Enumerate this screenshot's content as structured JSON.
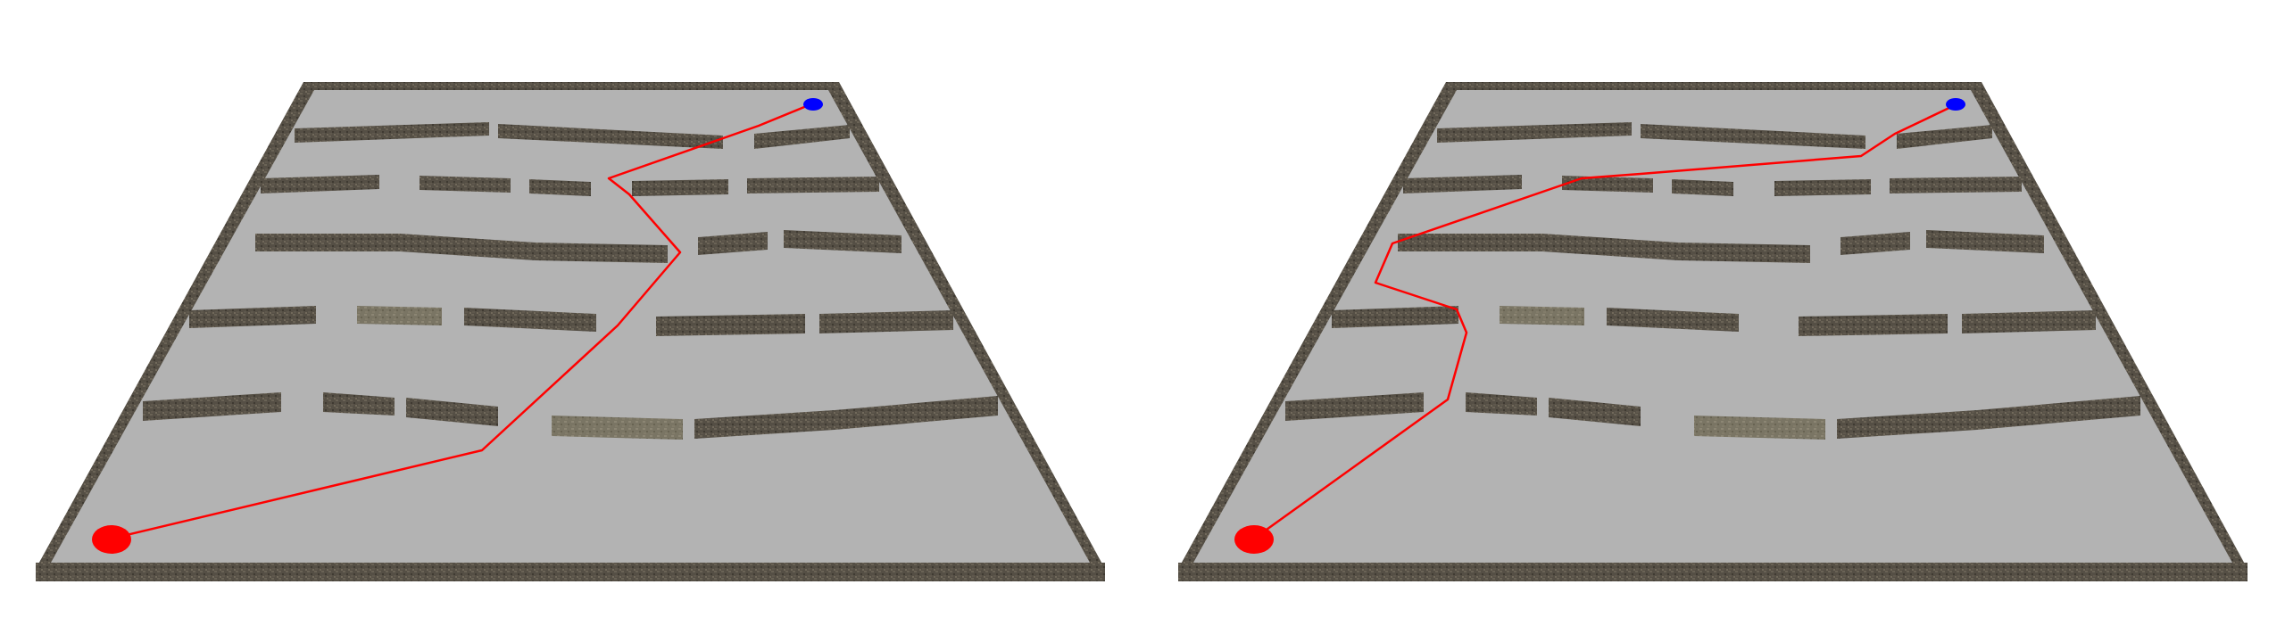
{
  "scene": {
    "title": "",
    "view_count": 2,
    "colors": {
      "background": "#ffffff",
      "floor": "#b3b3b3",
      "wall_dark": "#534d43",
      "wall_mid": "#6b6355",
      "wall_light": "#7f7a68",
      "wall_top": "#8a8474",
      "path": "#ff0000",
      "start_marker": "#ff0000",
      "goal_marker": "#0000ff"
    },
    "panels": [
      {
        "name": "left-maze-view",
        "path_label": "path-variant-a"
      },
      {
        "name": "right-maze-view",
        "path_label": "path-variant-b"
      }
    ]
  }
}
